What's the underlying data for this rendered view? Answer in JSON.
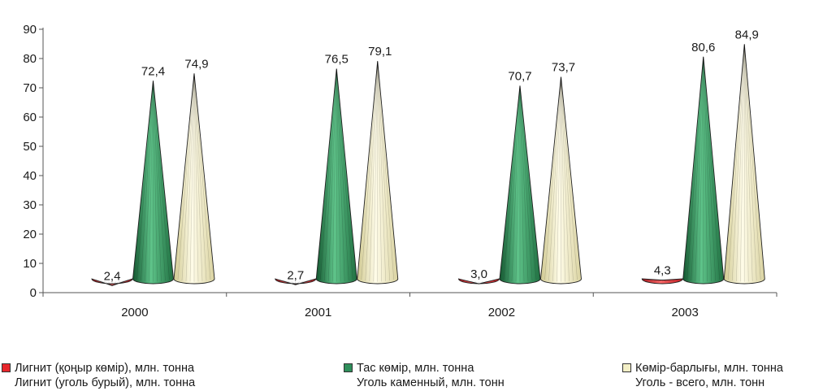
{
  "chart_data": {
    "type": "bar",
    "shape": "cone",
    "categories": [
      "2000",
      "2001",
      "2002",
      "2003"
    ],
    "ylim": [
      0,
      90
    ],
    "yticks": [
      0,
      10,
      20,
      30,
      40,
      50,
      60,
      70,
      80,
      90
    ],
    "decimal_separator": ",",
    "series": [
      {
        "name": "Лигнит (қоңыр көмір), млн. тонна",
        "name_ru": "Лигнит (уголь бурый), млн. тонна",
        "color": "#e8262b",
        "values": [
          2.4,
          2.7,
          3.0,
          4.3
        ],
        "labels": [
          "2,4",
          "2,7",
          "3,0",
          "4,3"
        ]
      },
      {
        "name": "Тас көмір, млн. тонна",
        "name_ru": "Уголь каменный, млн. тонн",
        "color": "#2f8f5b",
        "values": [
          72.4,
          76.5,
          70.7,
          80.6
        ],
        "labels": [
          "72,4",
          "76,5",
          "70,7",
          "80,6"
        ]
      },
      {
        "name": "Көмір-барлығы, млн. тонна",
        "name_ru": "Уголь - всего, млн. тонн",
        "color": "#f3efc6",
        "values": [
          74.9,
          79.1,
          73.7,
          84.9
        ],
        "labels": [
          "74,9",
          "79,1",
          "73,7",
          "84,9"
        ]
      }
    ],
    "legend_position": "bottom"
  }
}
